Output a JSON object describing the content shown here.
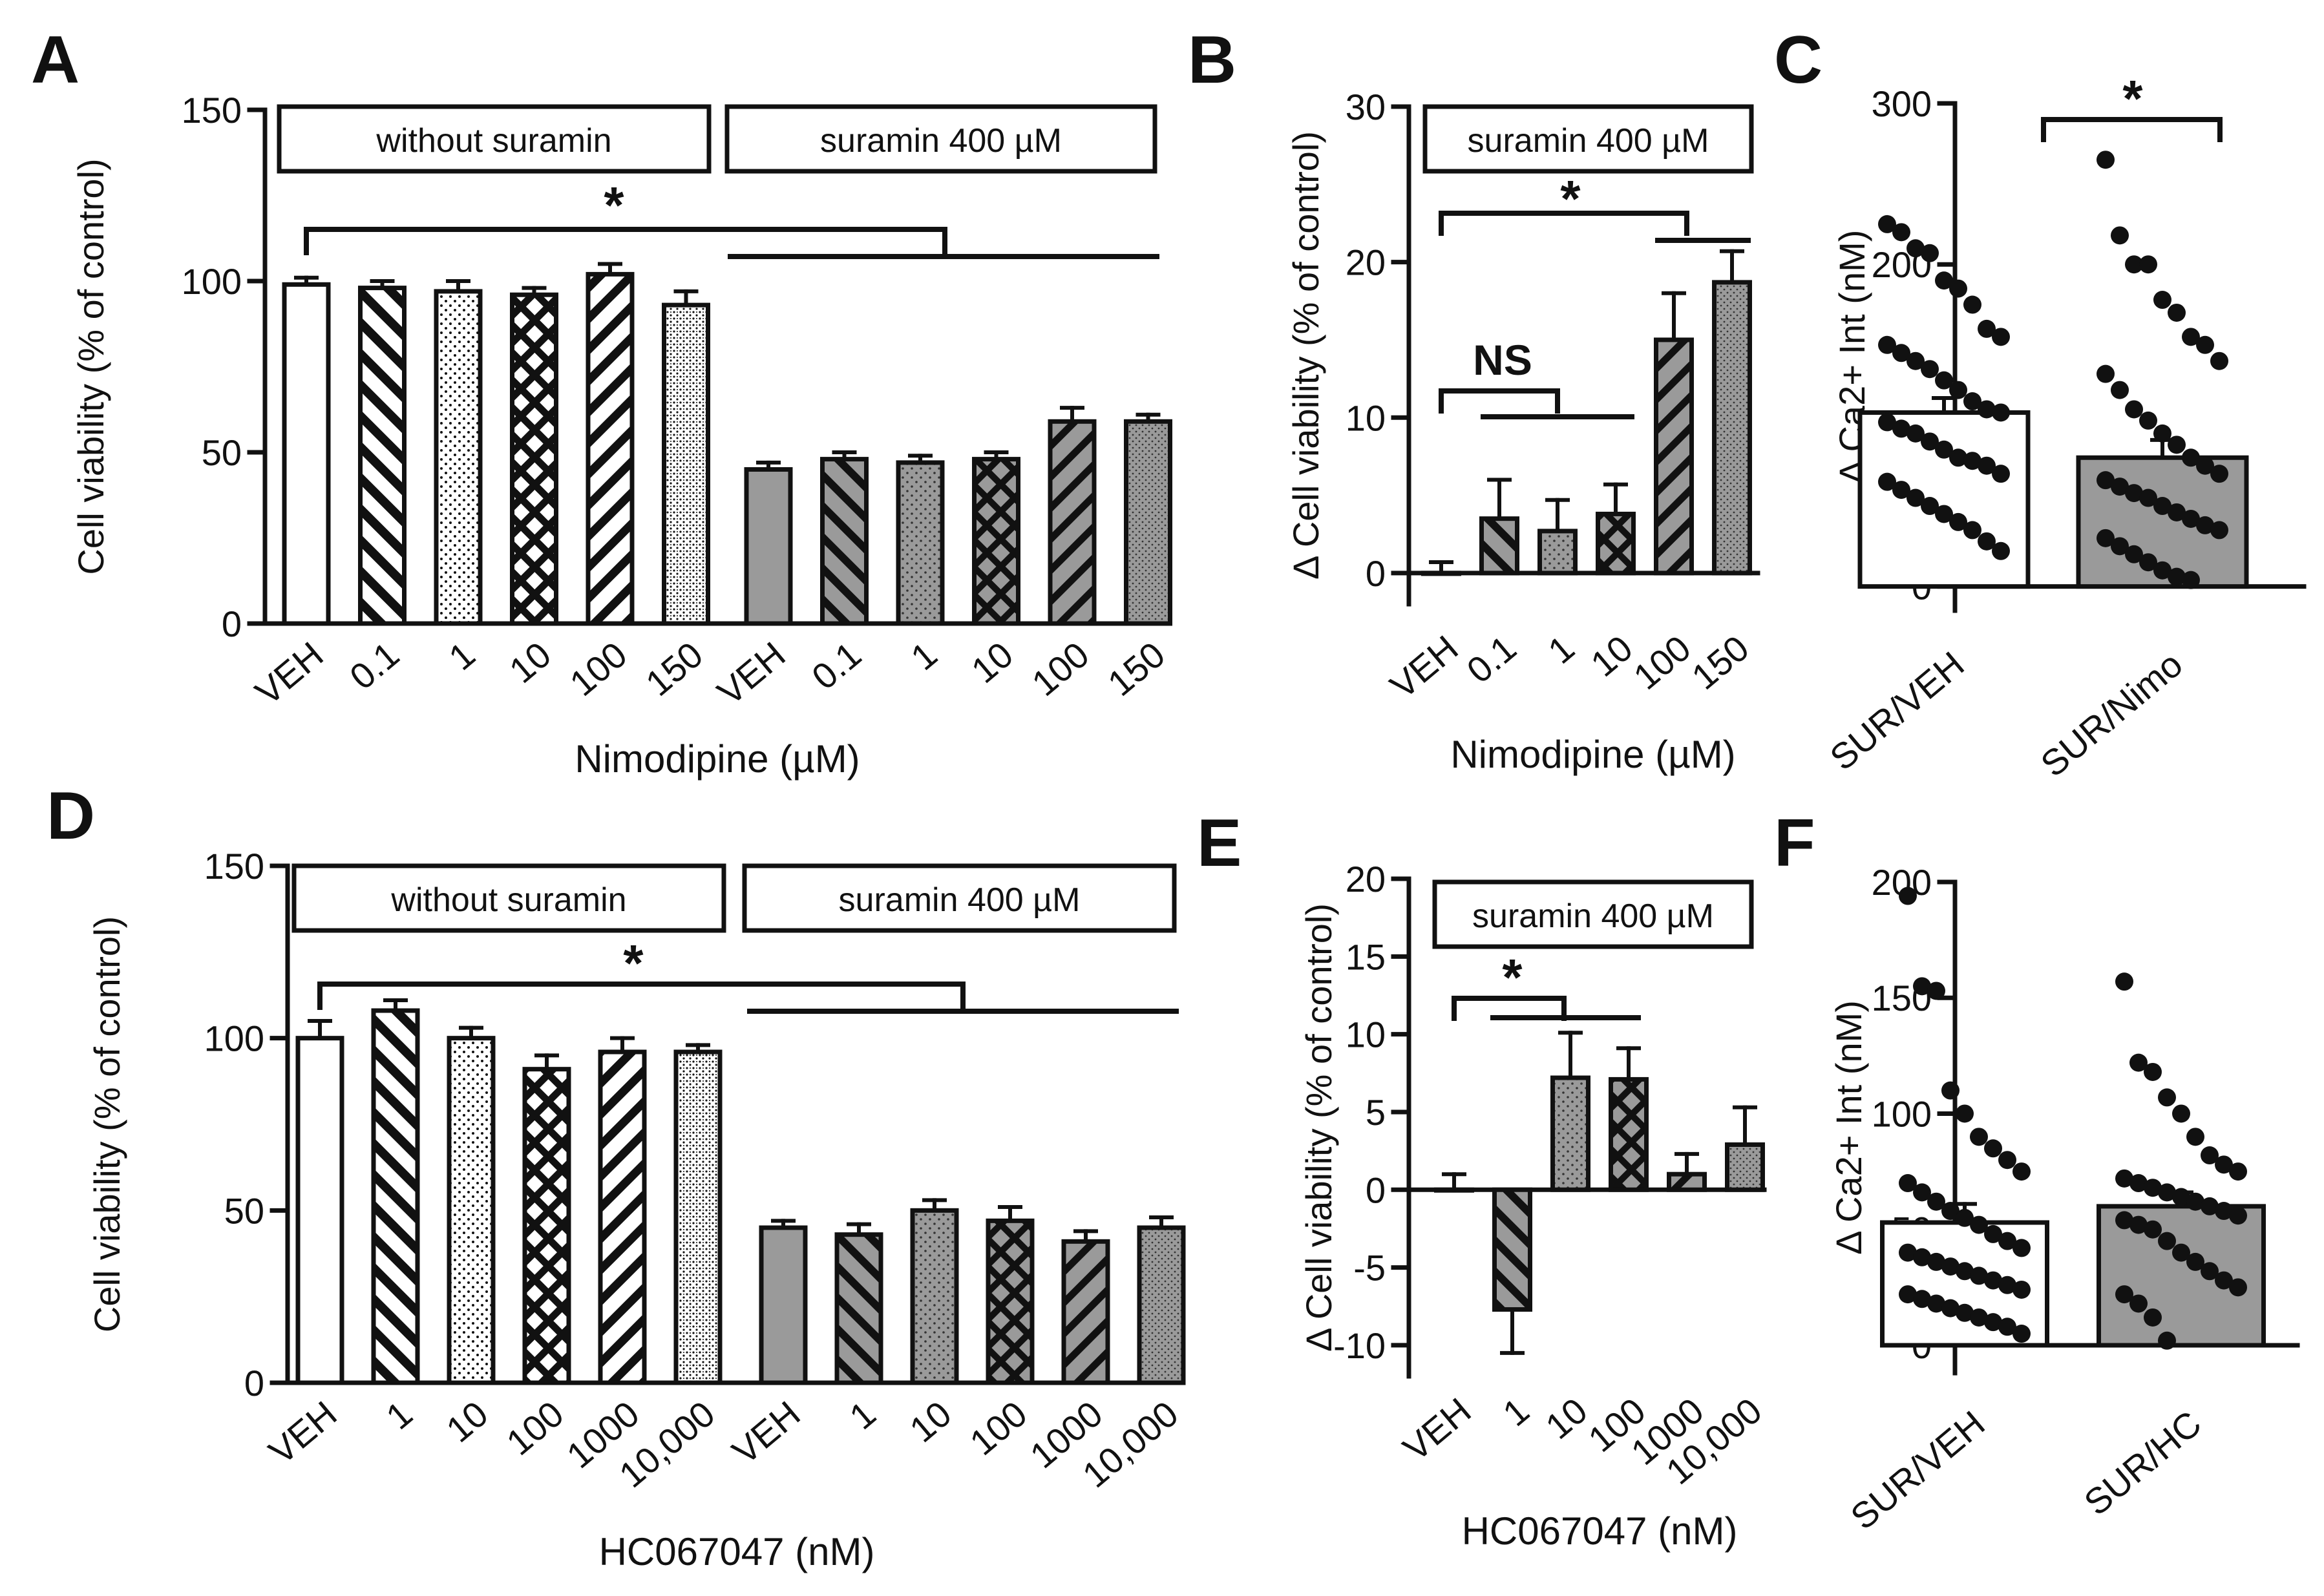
{
  "chart_data": [
    {
      "panel": "A",
      "type": "bar",
      "ylabel": "Cell viability (% of control)",
      "xlabel": "Nimodipine (µM)",
      "ylim": [
        0,
        150
      ],
      "yticks": [
        "0",
        "50",
        "100",
        "150"
      ],
      "categories": [
        "VEH",
        "0.1",
        "1",
        "10",
        "100",
        "150",
        "VEH",
        "0.1",
        "1",
        "10",
        "100",
        "150"
      ],
      "values": [
        99,
        98,
        97,
        96,
        102,
        93,
        45,
        48,
        47,
        48,
        59,
        59
      ],
      "errors": [
        2,
        2,
        3,
        2,
        3,
        4,
        2,
        2,
        2,
        2,
        4,
        2
      ],
      "boxes": [
        "without suramin",
        "suramin 400 µM"
      ],
      "annotations": [
        "*"
      ]
    },
    {
      "panel": "B",
      "type": "bar",
      "ylabel": "Δ Cell viability (% of control)",
      "xlabel": "Nimodipine (µM)",
      "ylim": [
        -2,
        30
      ],
      "yticks": [
        "0",
        "10",
        "20",
        "30"
      ],
      "categories": [
        "VEH",
        "0.1",
        "1",
        "10",
        "100",
        "150"
      ],
      "values": [
        0,
        3.5,
        2.7,
        3.8,
        15,
        18.7
      ],
      "errors": [
        0.7,
        2.5,
        2,
        1.9,
        3,
        2
      ],
      "boxes": [
        "suramin 400 µM"
      ],
      "annotations": [
        "*",
        "NS"
      ]
    },
    {
      "panel": "C",
      "type": "bar",
      "ylabel": "Δ Ca2+ Int (nM)",
      "ylim": [
        -15,
        300
      ],
      "yticks": [
        "0",
        "100",
        "200",
        "300"
      ],
      "categories": [
        "SUR/VEH",
        "SUR/Nimo"
      ],
      "values": [
        108,
        80
      ],
      "errors": [
        9,
        11
      ],
      "points": [
        [
          225,
          220,
          210,
          207,
          190,
          185,
          175,
          160,
          155,
          150,
          145,
          140,
          135,
          128,
          122,
          115,
          110,
          108,
          102,
          98,
          95,
          90,
          85,
          80,
          78,
          75,
          70,
          65,
          60,
          55,
          50,
          45,
          40,
          35,
          28,
          22
        ],
        [
          265,
          218,
          200,
          200,
          178,
          170,
          155,
          150,
          140,
          132,
          122,
          110,
          103,
          95,
          88,
          80,
          75,
          70,
          66,
          62,
          58,
          55,
          50,
          46,
          42,
          38,
          35,
          30,
          25,
          20,
          15,
          10,
          6,
          4
        ]
      ],
      "annotations": [
        "*"
      ]
    },
    {
      "panel": "D",
      "type": "bar",
      "ylabel": "Cell viability (% of control)",
      "xlabel": "HC067047 (nM)",
      "ylim": [
        0,
        150
      ],
      "yticks": [
        "0",
        "50",
        "100",
        "150"
      ],
      "categories": [
        "VEH",
        "1",
        "10",
        "100",
        "1000",
        "10,000",
        "VEH",
        "1",
        "10",
        "100",
        "1000",
        "10,000"
      ],
      "values": [
        100,
        108,
        100,
        91,
        96,
        96,
        45,
        43,
        50,
        47,
        41,
        45
      ],
      "errors": [
        5,
        3,
        3,
        4,
        4,
        2,
        2,
        3,
        3,
        4,
        3,
        3
      ],
      "boxes": [
        "without suramin",
        "suramin 400 µM"
      ],
      "annotations": [
        "*"
      ]
    },
    {
      "panel": "E",
      "type": "bar",
      "ylabel": "Δ Cell viability (% of control)",
      "xlabel": "HC067047 (nM)",
      "ylim": [
        -12,
        20
      ],
      "yticks": [
        "-10",
        "-5",
        "0",
        "5",
        "10",
        "15",
        "20"
      ],
      "categories": [
        "VEH",
        "1",
        "10",
        "100",
        "1000",
        "10,000"
      ],
      "values": [
        0,
        -7.7,
        7.2,
        7.1,
        1,
        2.9
      ],
      "errors": [
        1,
        2.8,
        2.9,
        2,
        1.3,
        2.4
      ],
      "boxes": [
        "suramin 400 µM"
      ],
      "annotations": [
        "*"
      ]
    },
    {
      "panel": "F",
      "type": "bar",
      "ylabel": "Δ Ca2+ Int (nM)",
      "ylim": [
        -12,
        200
      ],
      "yticks": [
        "0",
        "50",
        "100",
        "150",
        "200"
      ],
      "categories": [
        "SUR/VEH",
        "SUR/HC"
      ],
      "values": [
        53,
        60
      ],
      "errors": [
        8,
        6
      ],
      "points": [
        [
          194,
          155,
          153,
          110,
          100,
          90,
          85,
          80,
          75,
          70,
          66,
          62,
          58,
          55,
          52,
          48,
          45,
          42,
          40,
          38,
          36,
          34,
          32,
          30,
          28,
          26,
          24,
          22,
          20,
          18,
          16,
          14,
          12,
          10,
          8,
          5
        ],
        [
          157,
          122,
          118,
          107,
          100,
          90,
          82,
          78,
          75,
          72,
          70,
          68,
          66,
          64,
          62,
          60,
          58,
          56,
          54,
          52,
          50,
          45,
          40,
          36,
          32,
          28,
          25,
          22,
          18,
          12,
          2
        ]
      ],
      "annotations": []
    }
  ]
}
